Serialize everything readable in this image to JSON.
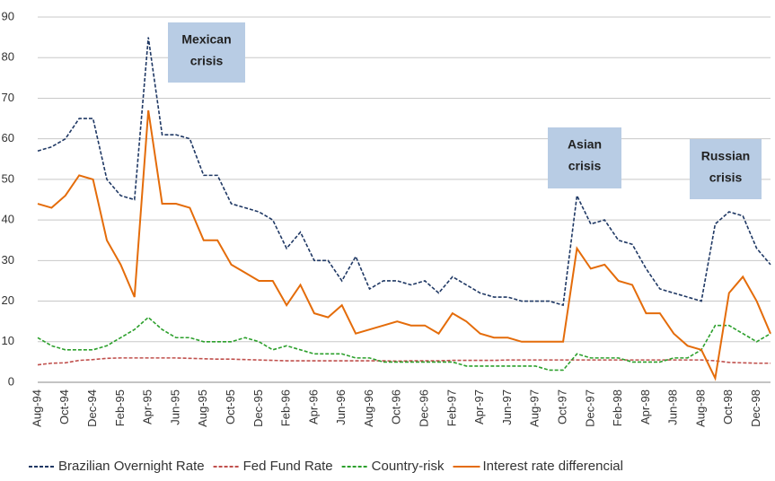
{
  "chart_data": {
    "type": "line",
    "categories": [
      "Aug-94",
      null,
      "Oct-94",
      null,
      "Dec-94",
      null,
      "Feb-95",
      null,
      "Apr-95",
      null,
      "Jun-95",
      null,
      "Aug-95",
      null,
      "Oct-95",
      null,
      "Dec-95",
      null,
      "Feb-96",
      null,
      "Apr-96",
      null,
      "Jun-96",
      null,
      "Aug-96",
      null,
      "Oct-96",
      null,
      "Dec-96",
      null,
      "Feb-97",
      null,
      "Apr-97",
      null,
      "Jun-97",
      null,
      "Aug-97",
      null,
      "Oct-97",
      null,
      "Dec-97",
      null,
      "Feb-98",
      null,
      "Apr-98",
      null,
      "Jun-98",
      null,
      "Aug-98",
      null,
      "Oct-98",
      null,
      "Dec-98",
      null
    ],
    "series": [
      {
        "name": "Brazilian Overnight Rate",
        "color": "#1f3864",
        "dash": "4,2",
        "values": [
          57,
          58,
          60,
          65,
          65,
          50,
          46,
          45,
          85,
          61,
          61,
          60,
          51,
          51,
          44,
          43,
          42,
          40,
          33,
          37,
          30,
          30,
          25,
          31,
          23,
          25,
          25,
          24,
          25,
          22,
          26,
          24,
          22,
          21,
          21,
          20,
          20,
          20,
          19,
          46,
          39,
          40,
          35,
          34,
          28,
          23,
          22,
          21,
          20,
          39,
          42,
          41,
          33,
          29
        ]
      },
      {
        "name": "Fed Fund Rate",
        "color": "#c0504d",
        "dash": "4,2",
        "values": [
          4.3,
          4.7,
          4.8,
          5.4,
          5.6,
          5.9,
          6,
          6,
          6,
          6,
          6,
          5.9,
          5.8,
          5.7,
          5.7,
          5.6,
          5.5,
          5.4,
          5.3,
          5.3,
          5.3,
          5.3,
          5.3,
          5.3,
          5.3,
          5.3,
          5.2,
          5.3,
          5.3,
          5.3,
          5.4,
          5.4,
          5.4,
          5.4,
          5.5,
          5.5,
          5.5,
          5.5,
          5.5,
          5.5,
          5.5,
          5.5,
          5.5,
          5.5,
          5.5,
          5.5,
          5.5,
          5.5,
          5.5,
          5.3,
          4.9,
          4.8,
          4.7,
          4.7
        ]
      },
      {
        "name": "Country-risk",
        "color": "#2ca02c",
        "dash": "4,2",
        "values": [
          11,
          9,
          8,
          8,
          8,
          9,
          11,
          13,
          16,
          13,
          11,
          11,
          10,
          10,
          10,
          11,
          10,
          8,
          9,
          8,
          7,
          7,
          7,
          6,
          6,
          5,
          5,
          5,
          5,
          5,
          5,
          4,
          4,
          4,
          4,
          4,
          4,
          3,
          3,
          7,
          6,
          6,
          6,
          5,
          5,
          5,
          6,
          6,
          8,
          14,
          14,
          12,
          10,
          12
        ]
      },
      {
        "name": "Interest rate differencial",
        "color": "#e46c0a",
        "dash": "",
        "values": [
          44,
          43,
          46,
          51,
          50,
          35,
          29,
          21,
          67,
          44,
          44,
          43,
          35,
          35,
          29,
          27,
          25,
          25,
          19,
          24,
          17,
          16,
          19,
          12,
          13,
          14,
          15,
          14,
          14,
          12,
          17,
          15,
          12,
          11,
          11,
          10,
          10,
          10,
          10,
          33,
          28,
          29,
          25,
          24,
          17,
          17,
          12,
          9,
          8,
          1,
          22,
          26,
          20,
          12
        ]
      }
    ],
    "ylim": [
      0,
      90
    ],
    "yticks": [
      0,
      10,
      20,
      30,
      40,
      50,
      60,
      70,
      80,
      90
    ],
    "grid": true,
    "annotations": [
      [
        "Mexican",
        "crisis"
      ],
      [
        "Asian",
        "crisis"
      ],
      [
        "Russian",
        "crisis"
      ]
    ]
  }
}
